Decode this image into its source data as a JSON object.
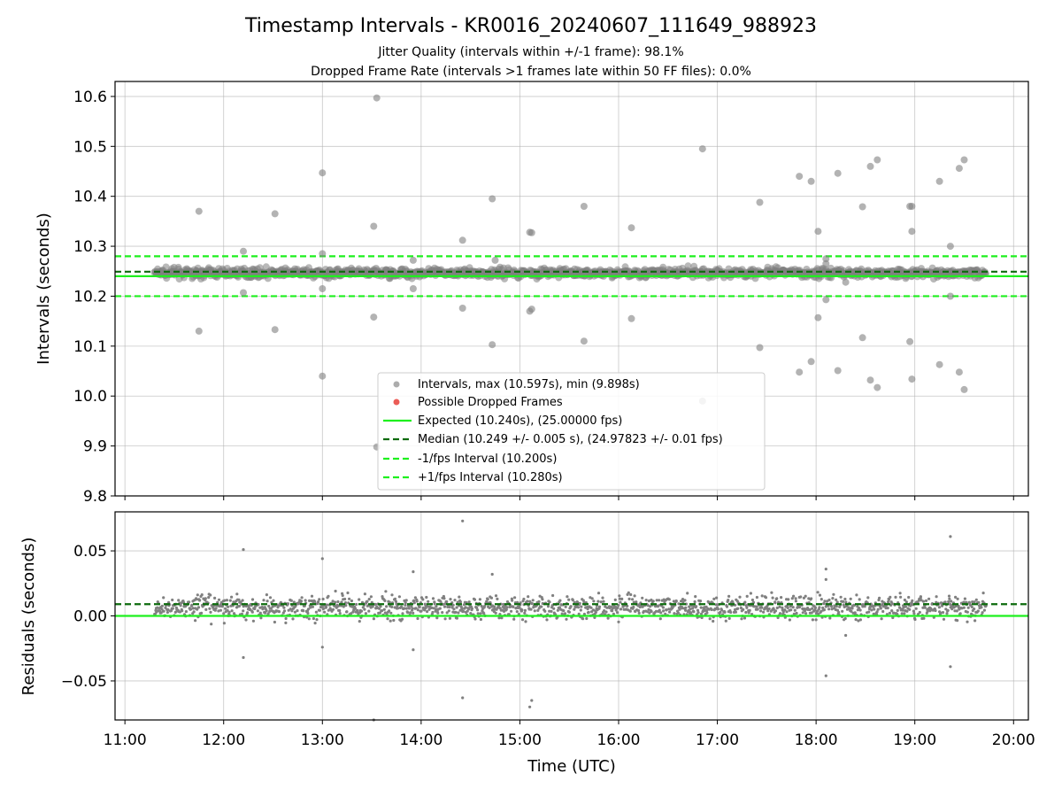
{
  "chart_data": [
    {
      "type": "scatter",
      "title": "Timestamp Intervals - KR0016_20240607_111649_988923",
      "subtitle_lines": [
        "Jitter Quality (intervals within +/-1 frame): 98.1%",
        "Dropped Frame Rate (intervals >1 frames late within 50 FF files): 0.0%"
      ],
      "ylabel": "Intervals (seconds)",
      "ylim": [
        9.8,
        10.63
      ],
      "yticks": [
        "9.8",
        "9.9",
        "10.0",
        "10.1",
        "10.2",
        "10.3",
        "10.4",
        "10.5",
        "10.6"
      ],
      "xlim": [
        10.9,
        20.15
      ],
      "grid": true,
      "legend_position": "lower center",
      "legend": [
        "Intervals, max (10.597s), min (9.898s)",
        "Possible Dropped Frames",
        "Expected (10.240s), (25.00000 fps)",
        "Median (10.249 +/- 0.005 s), (24.97823 +/- 0.01 fps)",
        "-1/fps Interval (10.200s)",
        "+1/fps Interval (10.280s)"
      ],
      "lines": {
        "expected": 10.24,
        "median": 10.249,
        "minus_one": 10.2,
        "plus_one": 10.28
      },
      "band": {
        "x_start": 11.3,
        "x_end": 19.72,
        "center": 10.2465,
        "spread": 0.008
      },
      "outliers": [
        [
          11.75,
          10.37
        ],
        [
          11.75,
          10.13
        ],
        [
          12.2,
          10.29
        ],
        [
          12.2,
          10.207
        ],
        [
          12.52,
          10.365
        ],
        [
          12.52,
          10.133
        ],
        [
          13.0,
          10.447
        ],
        [
          13.0,
          10.285
        ],
        [
          13.0,
          10.215
        ],
        [
          13.0,
          10.04
        ],
        [
          13.52,
          10.34
        ],
        [
          13.52,
          10.158
        ],
        [
          13.55,
          10.597
        ],
        [
          13.55,
          9.898
        ],
        [
          13.92,
          10.272
        ],
        [
          13.92,
          10.215
        ],
        [
          14.42,
          10.312
        ],
        [
          14.42,
          10.176
        ],
        [
          14.72,
          10.395
        ],
        [
          14.72,
          10.103
        ],
        [
          14.75,
          10.272
        ],
        [
          15.1,
          10.328
        ],
        [
          15.1,
          10.17
        ],
        [
          15.12,
          10.327
        ],
        [
          15.12,
          10.174
        ],
        [
          15.65,
          10.38
        ],
        [
          15.65,
          10.11
        ],
        [
          16.13,
          10.337
        ],
        [
          16.13,
          10.155
        ],
        [
          16.85,
          10.495
        ],
        [
          16.85,
          9.99
        ],
        [
          17.43,
          10.388
        ],
        [
          17.43,
          10.097
        ],
        [
          17.83,
          10.44
        ],
        [
          17.83,
          10.048
        ],
        [
          17.95,
          10.43
        ],
        [
          17.95,
          10.069
        ],
        [
          18.02,
          10.33
        ],
        [
          18.02,
          10.157
        ],
        [
          18.1,
          10.275
        ],
        [
          18.1,
          10.265
        ],
        [
          18.1,
          10.193
        ],
        [
          18.22,
          10.446
        ],
        [
          18.22,
          10.051
        ],
        [
          18.3,
          10.228
        ],
        [
          18.47,
          10.379
        ],
        [
          18.47,
          10.117
        ],
        [
          18.55,
          10.46
        ],
        [
          18.55,
          10.032
        ],
        [
          18.62,
          10.473
        ],
        [
          18.62,
          10.017
        ],
        [
          18.95,
          10.38
        ],
        [
          18.97,
          10.38
        ],
        [
          18.97,
          10.33
        ],
        [
          18.95,
          10.109
        ],
        [
          18.97,
          10.034
        ],
        [
          19.25,
          10.43
        ],
        [
          19.25,
          10.063
        ],
        [
          19.36,
          10.3
        ],
        [
          19.36,
          10.2
        ],
        [
          19.45,
          10.456
        ],
        [
          19.45,
          10.048
        ],
        [
          19.5,
          10.473
        ],
        [
          19.5,
          10.013
        ]
      ],
      "colors": {
        "points": "#808080",
        "dropped": "#e8413a",
        "expected": "#1ef01e",
        "median": "#0d6b0d",
        "fps_bounds": "#1ef01e"
      }
    },
    {
      "type": "scatter",
      "ylabel": "Residuals (seconds)",
      "xlabel": "Time (UTC)",
      "ylim": [
        -0.08,
        0.08
      ],
      "yticks": [
        "−0.05",
        "0.00",
        "0.05"
      ],
      "xlim": [
        10.9,
        20.15
      ],
      "xticks": [
        "11:00",
        "12:00",
        "13:00",
        "14:00",
        "15:00",
        "16:00",
        "17:00",
        "18:00",
        "19:00",
        "20:00"
      ],
      "grid": true,
      "lines": {
        "zero": 0.0,
        "median_residual": 0.009
      },
      "band": {
        "x_start": 11.3,
        "x_end": 19.72,
        "center": 0.0065,
        "spread": 0.0075
      },
      "outliers": [
        [
          12.2,
          0.051
        ],
        [
          12.2,
          -0.032
        ],
        [
          13.0,
          0.044
        ],
        [
          13.0,
          -0.024
        ],
        [
          13.52,
          -0.08
        ],
        [
          13.92,
          0.034
        ],
        [
          13.92,
          -0.026
        ],
        [
          14.42,
          0.073
        ],
        [
          14.42,
          -0.063
        ],
        [
          14.72,
          0.032
        ],
        [
          15.1,
          -0.07
        ],
        [
          15.12,
          -0.065
        ],
        [
          18.1,
          0.036
        ],
        [
          18.1,
          0.028
        ],
        [
          18.1,
          -0.046
        ],
        [
          18.3,
          -0.015
        ],
        [
          19.36,
          0.061
        ],
        [
          19.36,
          -0.039
        ]
      ],
      "colors": {
        "points": "#808080",
        "zero": "#1ef01e",
        "median_residual": "#0d6b0d"
      }
    }
  ]
}
